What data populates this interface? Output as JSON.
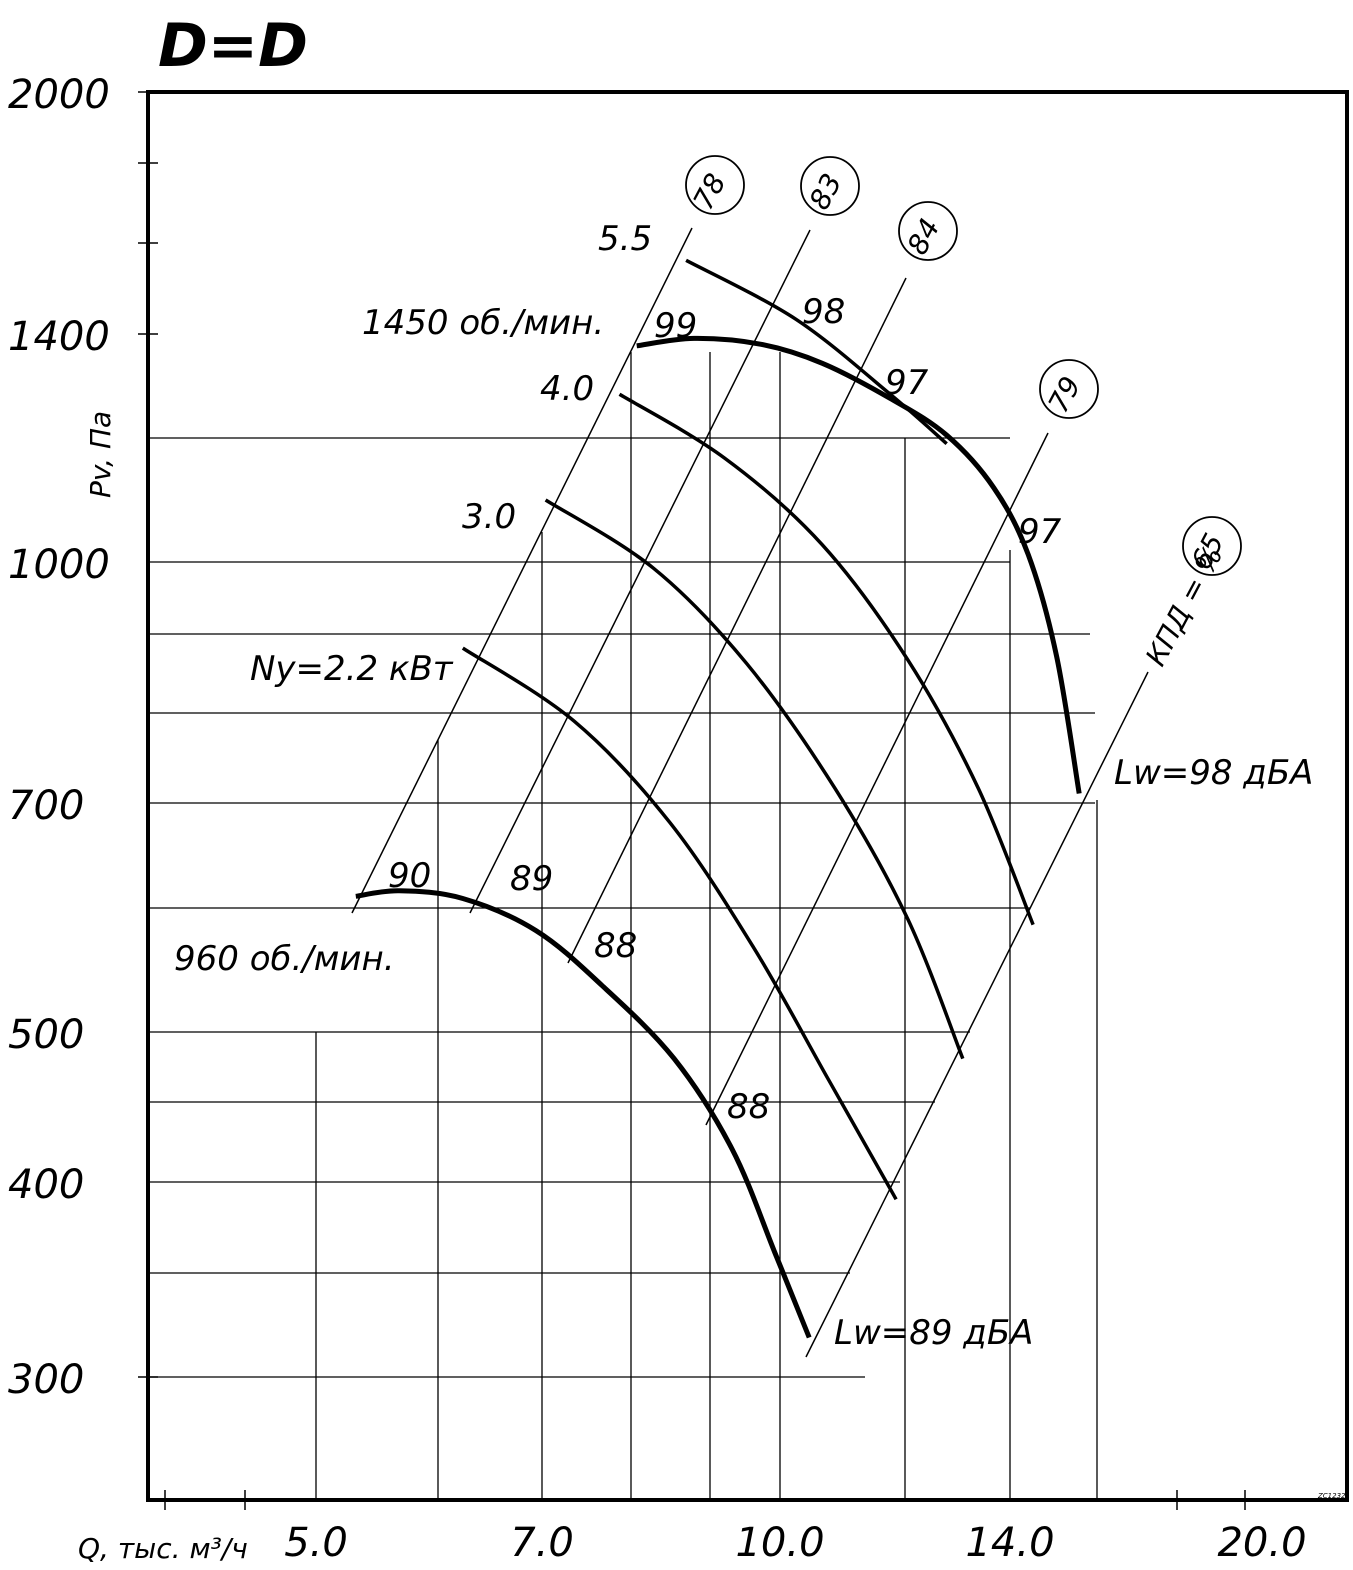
{
  "chart_data": {
    "type": "line",
    "title": "D=D",
    "xlabel": "Q, тыс. м³/ч",
    "ylabel": "Pv, Па",
    "x_scale": "log",
    "y_scale": "log",
    "xlim": [
      3.3,
      23.5
    ],
    "ylim": [
      250,
      2000
    ],
    "x_tick_labels": [
      "5.0",
      "7.0",
      "10.0",
      "14.0",
      "20.0"
    ],
    "x_ticks": [
      5,
      7,
      10,
      14,
      20
    ],
    "y_tick_labels": [
      "300",
      "400",
      "500",
      "700",
      "1000",
      "1400",
      "2000"
    ],
    "y_ticks": [
      300,
      400,
      500,
      700,
      1000,
      1400,
      2000
    ],
    "speed_curves": [
      {
        "name": "960 об./мин.",
        "points": [
          [
            5.3,
            610
          ],
          [
            5.65,
            615
          ],
          [
            6.2,
            608
          ],
          [
            6.9,
            580
          ],
          [
            7.6,
            535
          ],
          [
            8.45,
            480
          ],
          [
            9.2,
            420
          ],
          [
            9.8,
            360
          ],
          [
            10.3,
            318
          ]
        ]
      },
      {
        "name": "1450 об./мин.",
        "points": [
          [
            8.0,
            1375
          ],
          [
            8.7,
            1390
          ],
          [
            9.6,
            1378
          ],
          [
            10.5,
            1340
          ],
          [
            11.6,
            1272
          ],
          [
            12.6,
            1205
          ],
          [
            13.5,
            1115
          ],
          [
            14.2,
            1010
          ],
          [
            14.8,
            870
          ],
          [
            15.3,
            710
          ]
        ]
      }
    ],
    "power_curves": [
      {
        "label": "Ny=2.2 кВт",
        "points": [
          [
            6.2,
            880
          ],
          [
            7.3,
            790
          ],
          [
            8.4,
            680
          ],
          [
            9.5,
            565
          ],
          [
            10.6,
            465
          ],
          [
            11.7,
            390
          ]
        ]
      },
      {
        "label": "3.0",
        "points": [
          [
            7.0,
            1095
          ],
          [
            8.2,
            990
          ],
          [
            9.4,
            860
          ],
          [
            10.7,
            715
          ],
          [
            11.9,
            590
          ],
          [
            12.9,
            480
          ]
        ]
      },
      {
        "label": "4.0",
        "points": [
          [
            7.8,
            1280
          ],
          [
            9.1,
            1165
          ],
          [
            10.5,
            1025
          ],
          [
            11.9,
            865
          ],
          [
            13.2,
            715
          ],
          [
            14.3,
            585
          ]
        ]
      },
      {
        "label": "5.5",
        "points": [
          [
            8.6,
            1560
          ],
          [
            10.1,
            1430
          ],
          [
            11.6,
            1280
          ],
          [
            12.6,
            1190
          ]
        ]
      }
    ],
    "efficiency_labels": [
      "78",
      "83",
      "84",
      "79",
      "65"
    ],
    "efficiency_unit": "КПД = %",
    "sound_labels": [
      "90",
      "89",
      "88",
      "88",
      "99",
      "98",
      "97",
      "97"
    ],
    "sound_level_labels": [
      "Lw=89 дБА",
      "Lw=98 дБА"
    ],
    "stamp": "ZC1232"
  }
}
